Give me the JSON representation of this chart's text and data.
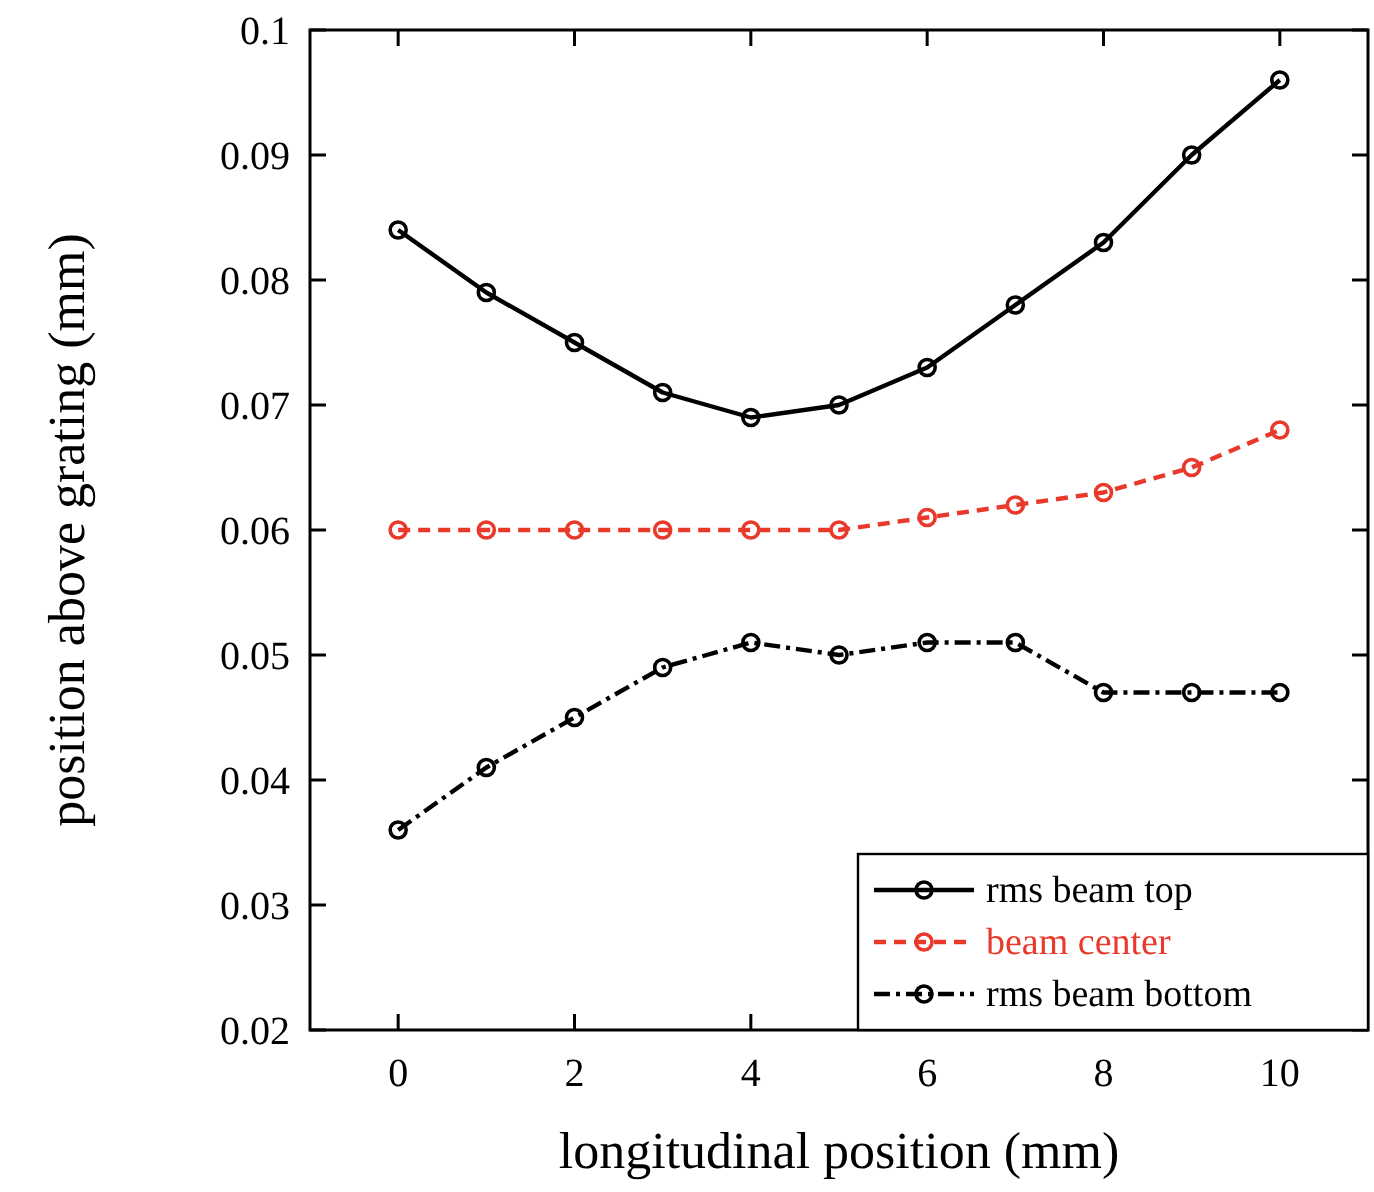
{
  "chart_data": {
    "type": "line",
    "xlabel": "longitudinal position (mm)",
    "ylabel": "position above grating (mm)",
    "x": [
      0,
      1,
      2,
      3,
      4,
      5,
      6,
      7,
      8,
      9,
      10
    ],
    "xlim": [
      -1,
      11
    ],
    "xticks": [
      0,
      2,
      4,
      6,
      8,
      10
    ],
    "ylim": [
      0.02,
      0.1
    ],
    "yticks": [
      0.02,
      0.03,
      0.04,
      0.05,
      0.06,
      0.07,
      0.08,
      0.09,
      0.1
    ],
    "marker": "circle",
    "grid": false,
    "legend": "bottom right",
    "series": [
      {
        "name": "rms beam top",
        "color": "#000000",
        "line_style": "solid",
        "values": [
          0.084,
          0.079,
          0.075,
          0.071,
          0.069,
          0.07,
          0.073,
          0.078,
          0.083,
          0.09,
          0.096
        ]
      },
      {
        "name": "beam center",
        "color": "#e8392a",
        "line_style": "dashed",
        "values": [
          0.06,
          0.06,
          0.06,
          0.06,
          0.06,
          0.06,
          0.061,
          0.062,
          0.063,
          0.065,
          0.068
        ]
      },
      {
        "name": "rms beam bottom",
        "color": "#000000",
        "line_style": "dashdot",
        "values": [
          0.036,
          0.041,
          0.045,
          0.049,
          0.051,
          0.05,
          0.051,
          0.051,
          0.047,
          0.047,
          0.047
        ]
      }
    ]
  }
}
